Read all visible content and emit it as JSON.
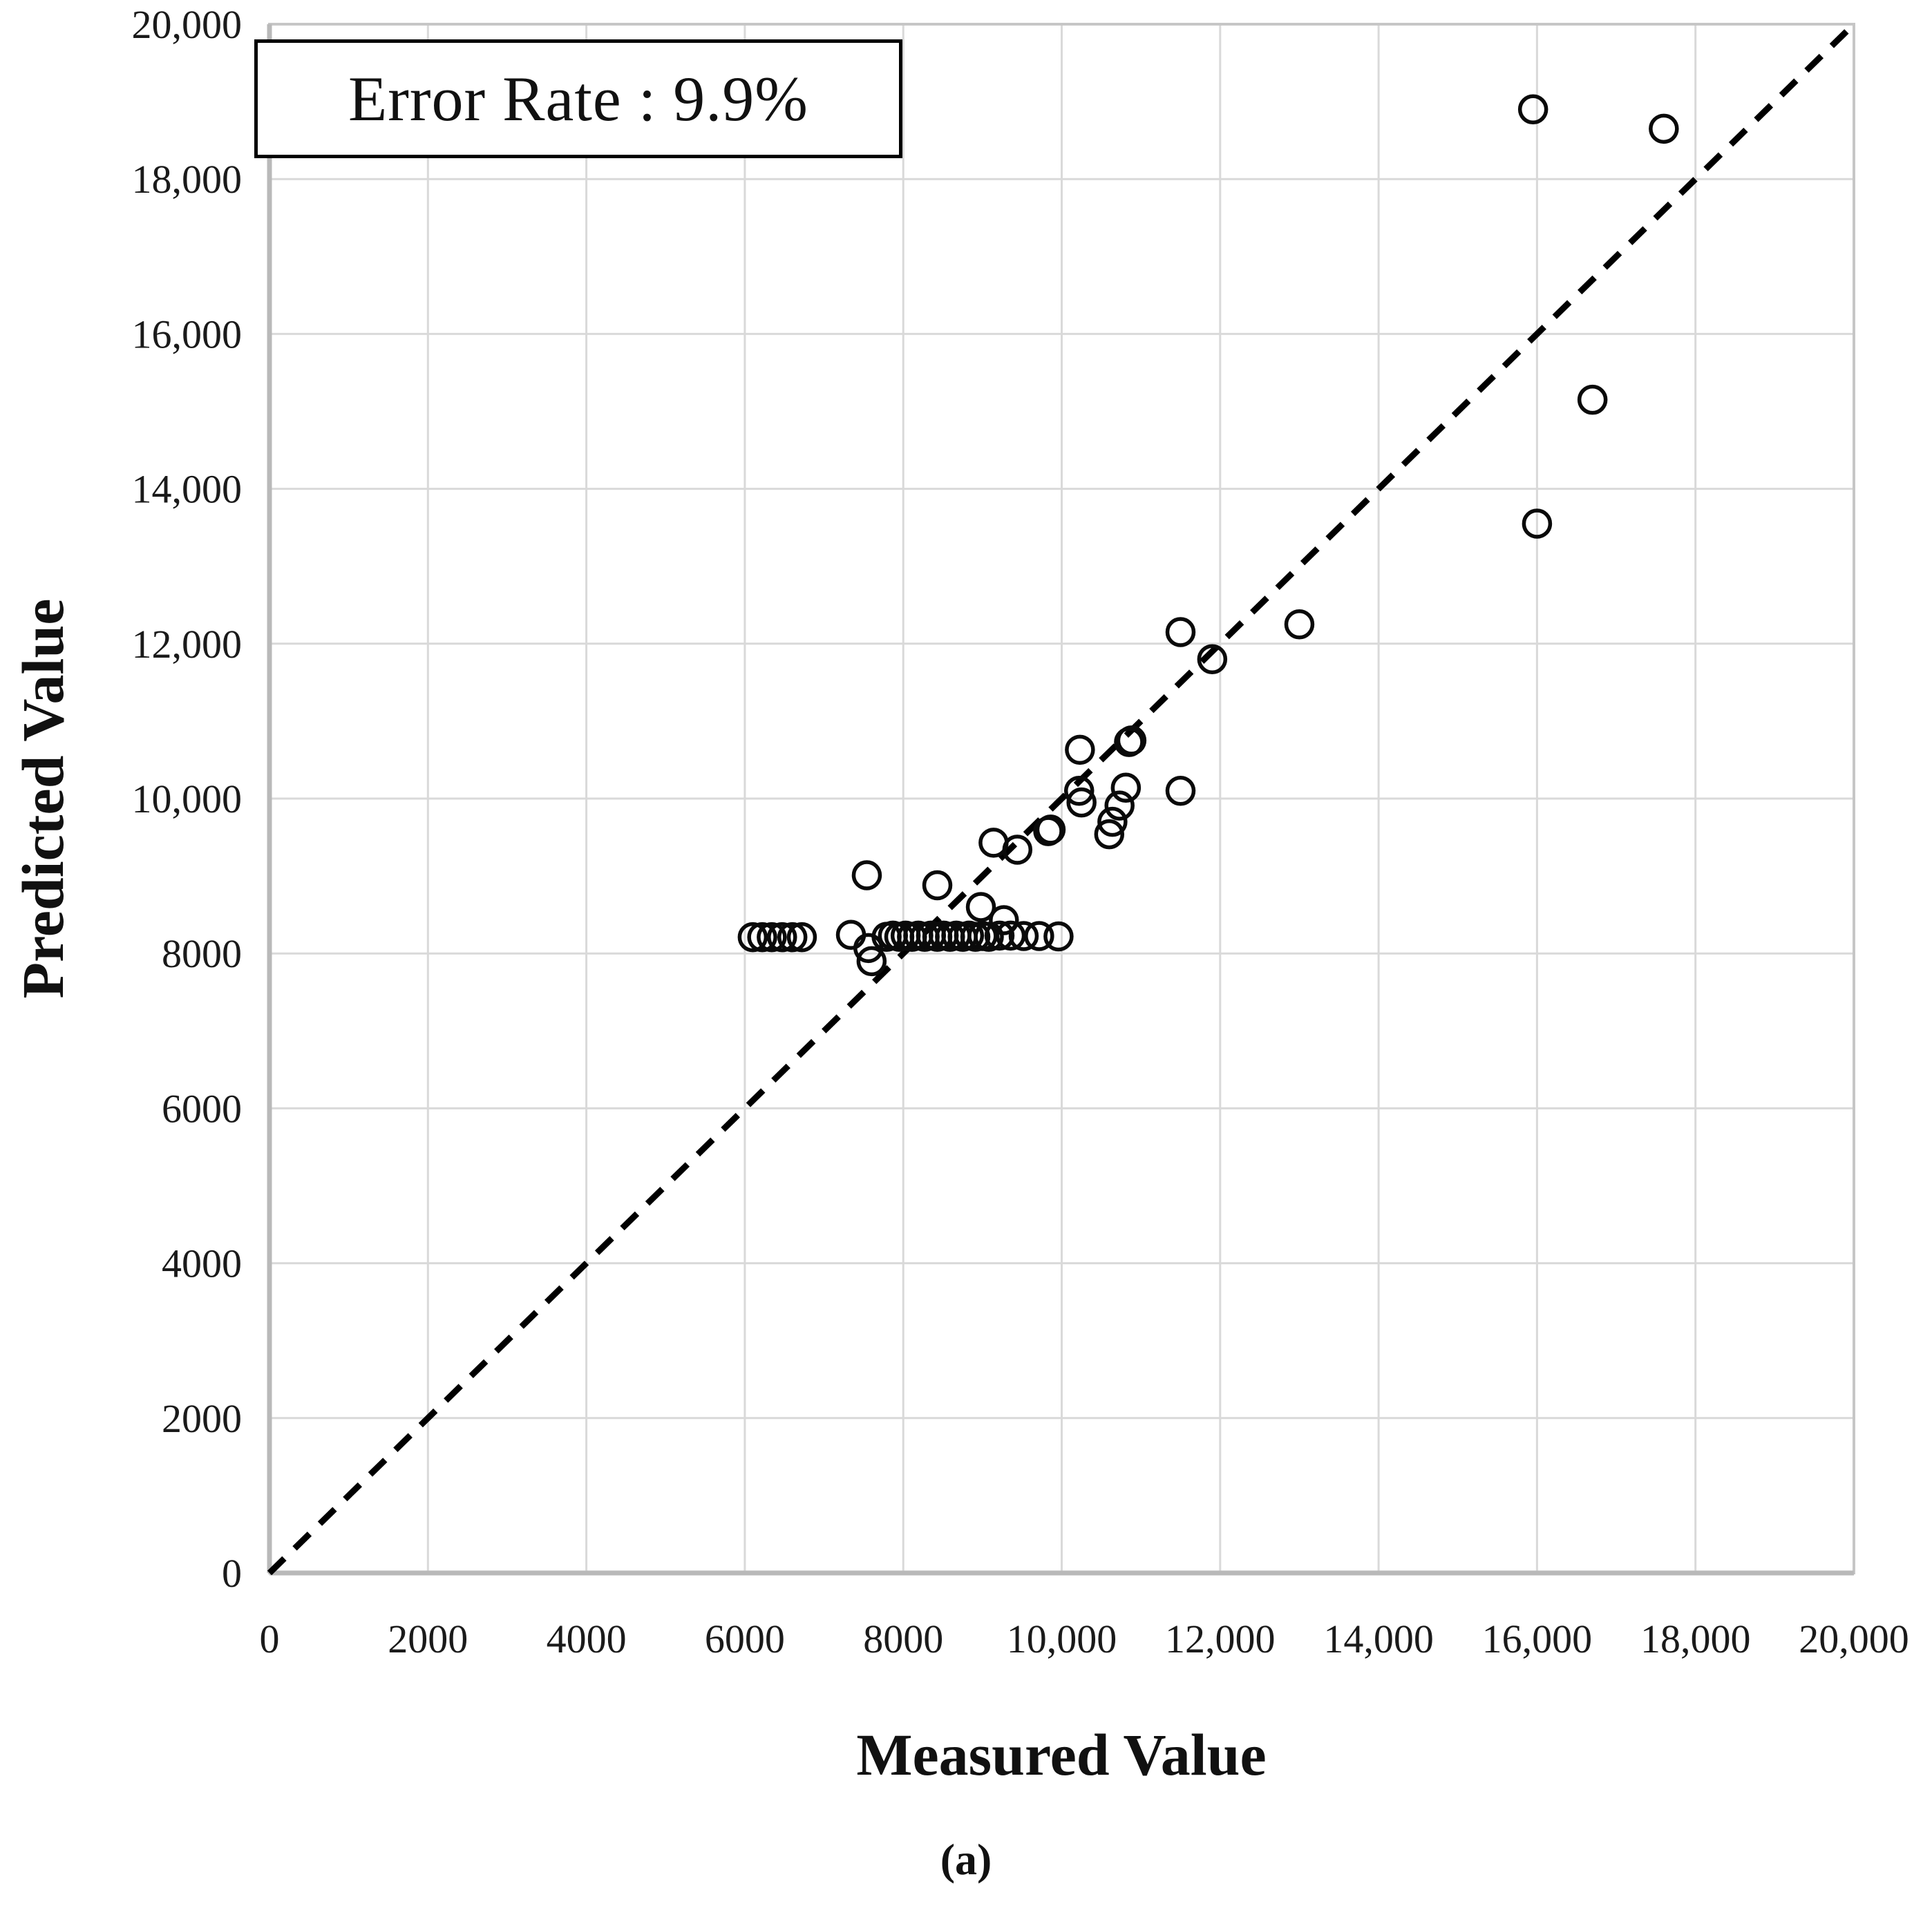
{
  "figure": {
    "background": "#ffffff",
    "caption": "(a)"
  },
  "chart_data": {
    "type": "scatter",
    "title": "",
    "xlabel": "Measured Value",
    "ylabel": "Predicted Value",
    "xlim": [
      0,
      20000
    ],
    "ylim": [
      0,
      20000
    ],
    "grid": true,
    "grid_color": "#d9d9d9",
    "axis_color": "#b9b9b9",
    "marker_color": "#0a0a0a",
    "annotation": "Error Rate : 9.9%",
    "x_tick_values": [
      0,
      2000,
      4000,
      6000,
      8000,
      10000,
      12000,
      14000,
      16000,
      18000,
      20000
    ],
    "x_tick_labels": [
      "0",
      "2000",
      "4000",
      "6000",
      "8000",
      "10,000",
      "12,000",
      "14,000",
      "16,000",
      "18,000",
      "20,000"
    ],
    "y_tick_values": [
      0,
      2000,
      4000,
      6000,
      8000,
      10000,
      12000,
      14000,
      16000,
      18000,
      20000
    ],
    "y_tick_labels": [
      "0",
      "2000",
      "4000",
      "6000",
      "8000",
      "10,000",
      "12,000",
      "14,000",
      "16,000",
      "18,000",
      "20,000"
    ],
    "identity_line": {
      "style": "dashed",
      "x": [
        0,
        20000
      ],
      "y": [
        0,
        20000
      ]
    },
    "points": [
      [
        6100,
        8210
      ],
      [
        6220,
        8210
      ],
      [
        6340,
        8210
      ],
      [
        6470,
        8210
      ],
      [
        6600,
        8210
      ],
      [
        6720,
        8210
      ],
      [
        7340,
        8240
      ],
      [
        7560,
        8070
      ],
      [
        7600,
        7900
      ],
      [
        7540,
        9010
      ],
      [
        7790,
        8215
      ],
      [
        7870,
        8230
      ],
      [
        7950,
        8215
      ],
      [
        8030,
        8230
      ],
      [
        8110,
        8215
      ],
      [
        8190,
        8230
      ],
      [
        8270,
        8215
      ],
      [
        8350,
        8230
      ],
      [
        8430,
        8215
      ],
      [
        8510,
        8230
      ],
      [
        8590,
        8215
      ],
      [
        8670,
        8230
      ],
      [
        8750,
        8215
      ],
      [
        8830,
        8230
      ],
      [
        8910,
        8215
      ],
      [
        9000,
        8225
      ],
      [
        9080,
        8215
      ],
      [
        9215,
        8230
      ],
      [
        9355,
        8230
      ],
      [
        9520,
        8225
      ],
      [
        9715,
        8225
      ],
      [
        9960,
        8220
      ],
      [
        8430,
        8880
      ],
      [
        8980,
        8600
      ],
      [
        9270,
        8430
      ],
      [
        9140,
        9430
      ],
      [
        9440,
        9340
      ],
      [
        9830,
        9580
      ],
      [
        9860,
        9600
      ],
      [
        10220,
        10100
      ],
      [
        10250,
        9950
      ],
      [
        10230,
        10630
      ],
      [
        10850,
        10730
      ],
      [
        10880,
        10750
      ],
      [
        10810,
        10140
      ],
      [
        10730,
        9910
      ],
      [
        10640,
        9700
      ],
      [
        10600,
        9540
      ],
      [
        11500,
        10100
      ],
      [
        11500,
        12150
      ],
      [
        11900,
        11800
      ],
      [
        13000,
        12250
      ],
      [
        16000,
        13550
      ],
      [
        16700,
        15150
      ],
      [
        15950,
        18900
      ],
      [
        17600,
        18650
      ]
    ]
  }
}
